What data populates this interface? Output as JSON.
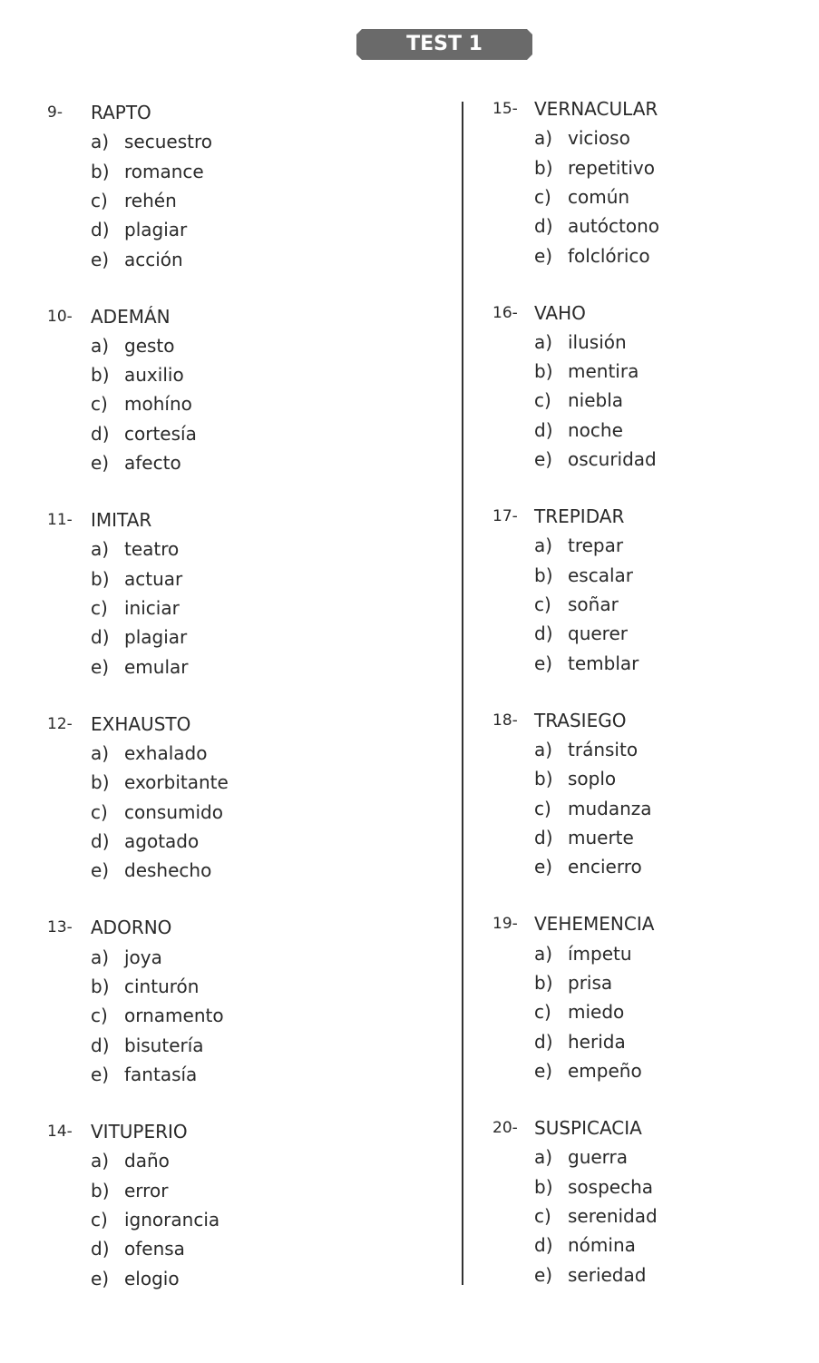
{
  "title": "TEST 1",
  "left": [
    {
      "num": "9-",
      "word": "RAPTO",
      "options": [
        [
          "a)",
          "secuestro"
        ],
        [
          "b)",
          "romance"
        ],
        [
          "c)",
          "rehén"
        ],
        [
          "d)",
          "plagiar"
        ],
        [
          "e)",
          "acción"
        ]
      ]
    },
    {
      "num": "10-",
      "word": "ADEMÁN",
      "options": [
        [
          "a)",
          "gesto"
        ],
        [
          "b)",
          "auxilio"
        ],
        [
          "c)",
          "mohíno"
        ],
        [
          "d)",
          "cortesía"
        ],
        [
          "e)",
          "afecto"
        ]
      ]
    },
    {
      "num": "11-",
      "word": "IMITAR",
      "options": [
        [
          "a)",
          "teatro"
        ],
        [
          "b)",
          "actuar"
        ],
        [
          "c)",
          "iniciar"
        ],
        [
          "d)",
          "plagiar"
        ],
        [
          "e)",
          "emular"
        ]
      ]
    },
    {
      "num": "12-",
      "word": "EXHAUSTO",
      "options": [
        [
          "a)",
          "exhalado"
        ],
        [
          "b)",
          "exorbitante"
        ],
        [
          "c)",
          "consumido"
        ],
        [
          "d)",
          "agotado"
        ],
        [
          "e)",
          "deshecho"
        ]
      ]
    },
    {
      "num": "13-",
      "word": "ADORNO",
      "options": [
        [
          "a)",
          "joya"
        ],
        [
          "b)",
          "cinturón"
        ],
        [
          "c)",
          "ornamento"
        ],
        [
          "d)",
          "bisutería"
        ],
        [
          "e)",
          "fantasía"
        ]
      ]
    },
    {
      "num": "14-",
      "word": "VITUPERIO",
      "options": [
        [
          "a)",
          "daño"
        ],
        [
          "b)",
          "error"
        ],
        [
          "c)",
          "ignorancia"
        ],
        [
          "d)",
          "ofensa"
        ],
        [
          "e)",
          "elogio"
        ]
      ]
    }
  ],
  "right": [
    {
      "num": "15-",
      "word": "VERNACULAR",
      "options": [
        [
          "a)",
          "vicioso"
        ],
        [
          "b)",
          "repetitivo"
        ],
        [
          "c)",
          "común"
        ],
        [
          "d)",
          "autóctono"
        ],
        [
          "e)",
          "folclórico"
        ]
      ]
    },
    {
      "num": "16-",
      "word": "VAHO",
      "options": [
        [
          "a)",
          "ilusión"
        ],
        [
          "b)",
          "mentira"
        ],
        [
          "c)",
          "niebla"
        ],
        [
          "d)",
          "noche"
        ],
        [
          "e)",
          "oscuridad"
        ]
      ]
    },
    {
      "num": "17-",
      "word": "TREPIDAR",
      "options": [
        [
          "a)",
          "trepar"
        ],
        [
          "b)",
          "escalar"
        ],
        [
          "c)",
          "soñar"
        ],
        [
          "d)",
          "querer"
        ],
        [
          "e)",
          "temblar"
        ]
      ]
    },
    {
      "num": "18-",
      "word": "TRASIEGO",
      "options": [
        [
          "a)",
          "tránsito"
        ],
        [
          "b)",
          "soplo"
        ],
        [
          "c)",
          "mudanza"
        ],
        [
          "d)",
          "muerte"
        ],
        [
          "e)",
          "encierro"
        ]
      ]
    },
    {
      "num": "19-",
      "word": "VEHEMENCIA",
      "options": [
        [
          "a)",
          "ímpetu"
        ],
        [
          "b)",
          "prisa"
        ],
        [
          "c)",
          "miedo"
        ],
        [
          "d)",
          "herida"
        ],
        [
          "e)",
          "empeño"
        ]
      ]
    },
    {
      "num": "20-",
      "word": "SUSPICACIA",
      "options": [
        [
          "a)",
          "guerra"
        ],
        [
          "b)",
          "sospecha"
        ],
        [
          "c)",
          "serenidad"
        ],
        [
          "d)",
          "nómina"
        ],
        [
          "e)",
          "seriedad"
        ]
      ]
    }
  ]
}
